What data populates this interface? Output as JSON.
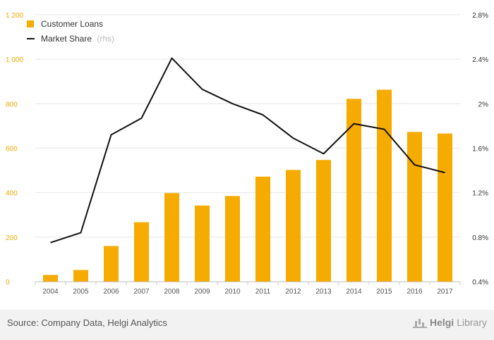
{
  "chart_data": {
    "type": "bar+line",
    "categories": [
      "2004",
      "2005",
      "2006",
      "2007",
      "2008",
      "2009",
      "2010",
      "2011",
      "2012",
      "2013",
      "2014",
      "2015",
      "2016",
      "2017"
    ],
    "series": [
      {
        "name": "Customer Loans",
        "type": "bar",
        "axis": "left",
        "values": [
          30,
          52,
          160,
          267,
          398,
          342,
          385,
          472,
          502,
          547,
          822,
          863,
          673,
          666
        ]
      },
      {
        "name": "Market Share",
        "name_suffix": "(rhs)",
        "type": "line",
        "axis": "right",
        "values": [
          0.75,
          0.84,
          1.72,
          1.87,
          2.41,
          2.13,
          2.0,
          1.9,
          1.69,
          1.55,
          1.82,
          1.77,
          1.45,
          1.38
        ]
      }
    ],
    "ylim_left": [
      0,
      1200
    ],
    "yticks_left": [
      0,
      200,
      400,
      600,
      800,
      1000,
      1200
    ],
    "ytick_labels_left": [
      "0",
      "200",
      "400",
      "600",
      "800",
      "1 000",
      "1 200"
    ],
    "ylim_right": [
      0.4,
      2.8
    ],
    "yticks_right": [
      0.4,
      0.8,
      1.2,
      1.6,
      2.0,
      2.4,
      2.8
    ],
    "ytick_labels_right": [
      "0.4%",
      "0.8%",
      "1.2%",
      "1.6%",
      "2%",
      "2.4%",
      "2.8%"
    ],
    "grid": true,
    "legend_position": "top-left",
    "colors": {
      "bar": "#f5ab00",
      "line": "#111111",
      "left_axis_text": "#f2a900",
      "grid": "#e6e6e6"
    }
  },
  "footer": {
    "source": "Source: Company Data, Helgi Analytics",
    "brand_part1": "Helgi",
    "brand_part2": "Library"
  }
}
